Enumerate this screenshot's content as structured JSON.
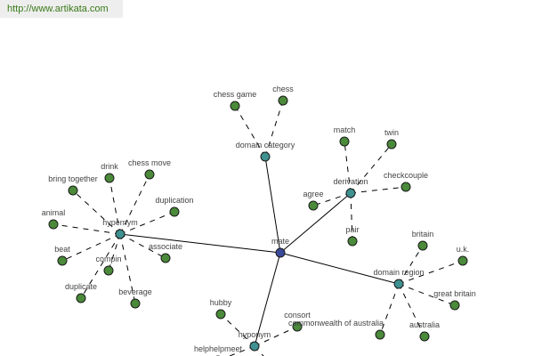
{
  "header": {
    "url": "http://www.artikata.com"
  },
  "colors": {
    "center": "#3a4a9a",
    "hub": "#3f9090",
    "leaf": "#4a8a3a",
    "edge": "#000000"
  },
  "graph": {
    "center": {
      "id": "mate",
      "label": "mate"
    },
    "hubs": [
      {
        "id": "hypernym",
        "label": "hypernym",
        "leaves": [
          "bring together",
          "drink",
          "chess move",
          "duplication",
          "animal",
          "beat",
          "compin",
          "associate",
          "duplicate",
          "beverage"
        ]
      },
      {
        "id": "domain-category",
        "label": "domain category",
        "leaves": [
          "chess game",
          "chess"
        ]
      },
      {
        "id": "derivation",
        "label": "derivation",
        "leaves": [
          "match",
          "twin",
          "checkcouple",
          "agree",
          "pair"
        ]
      },
      {
        "id": "domain-region",
        "label": "domain region",
        "leaves": [
          "britain",
          "u.k.",
          "great britain",
          "commonwealth of australia",
          "australia"
        ]
      },
      {
        "id": "hyponym",
        "label": "hyponym",
        "leaves": [
          "hubby",
          "consort",
          "helphelpmeet",
          ""
        ]
      }
    ]
  }
}
